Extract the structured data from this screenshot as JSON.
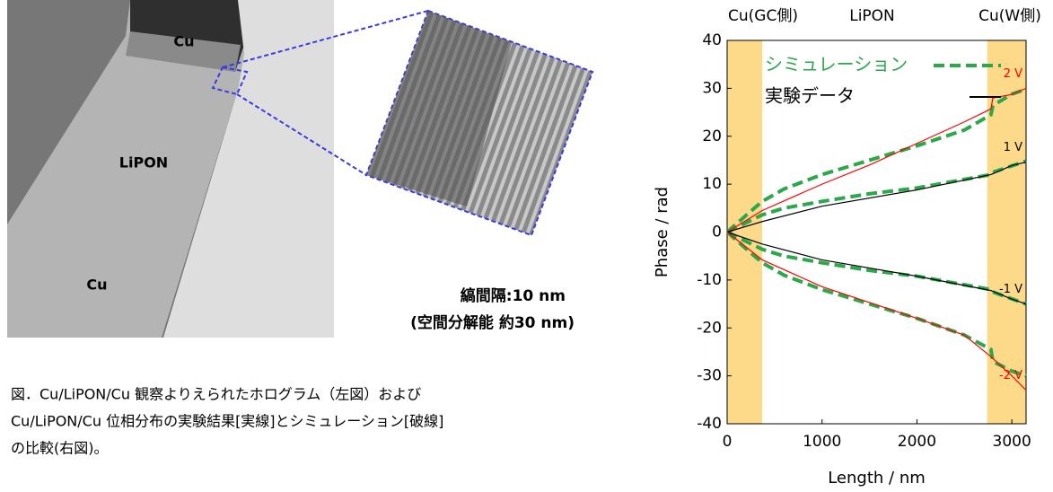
{
  "image": {
    "labels": [
      "Cu",
      "LiPON",
      "Cu"
    ],
    "fringe_spacing": "縞間隔:10 nm",
    "resolution": "(空間分解能 約30 nm)"
  },
  "caption": [
    "図．Cu/LiPON/Cu 観察よりえられたホログラム（左図）および",
    "Cu/LiPON/Cu 位相分布の実験結果[実線]とシミュレーション[破線]",
    "の比較(右図)。"
  ],
  "chart_data": {
    "type": "line",
    "xlabel": "Length / nm",
    "ylabel": "Phase / rad",
    "xlim": [
      0,
      3150
    ],
    "ylim": [
      -40,
      40
    ],
    "xticks": [
      0,
      1000,
      2000,
      3000
    ],
    "yticks": [
      -40,
      -30,
      -20,
      -10,
      0,
      10,
      20,
      30,
      40
    ],
    "regions": [
      {
        "label": "Cu(GC側)",
        "span": [
          0,
          370
        ]
      },
      {
        "label": "LiPON"
      },
      {
        "label": "Cu(W側)",
        "span": [
          2740,
          3150
        ]
      }
    ],
    "region_color": "#fdd98a",
    "legend": [
      {
        "name": "シミュレーション",
        "color": "#2aa84a",
        "dash": true
      },
      {
        "name": "実験データ",
        "color": "#000000",
        "dash": false
      }
    ],
    "series": [
      {
        "label": "2 V",
        "color": "#2aa84a",
        "dash": true,
        "x": [
          0,
          200,
          370,
          600,
          1000,
          1500,
          2000,
          2500,
          2780,
          2800,
          3000,
          3150
        ],
        "values": [
          0,
          3.5,
          6.4,
          9,
          12,
          15,
          18,
          21.3,
          24.5,
          26.4,
          28.8,
          29.8
        ]
      },
      {
        "label": "1 V",
        "color": "#2aa84a",
        "dash": true,
        "x": [
          0,
          370,
          600,
          1000,
          1500,
          2000,
          2780,
          2800,
          3150
        ],
        "values": [
          0,
          3.6,
          5,
          6.4,
          8,
          9.2,
          12,
          12.5,
          14.8
        ]
      },
      {
        "label": "-1 V",
        "color": "#2aa84a",
        "dash": true,
        "x": [
          0,
          370,
          600,
          1000,
          1500,
          2000,
          2780,
          2800,
          3150
        ],
        "values": [
          0,
          -3.6,
          -5,
          -6.4,
          -8,
          -9.2,
          -12,
          -12.5,
          -15
        ]
      },
      {
        "label": "-2 V",
        "color": "#2aa84a",
        "dash": true,
        "x": [
          0,
          200,
          370,
          600,
          1000,
          1500,
          2000,
          2500,
          2780,
          2800,
          3000,
          3150
        ],
        "values": [
          0,
          -3.5,
          -6.4,
          -9,
          -12,
          -15,
          -18,
          -21.5,
          -24.5,
          -27,
          -29,
          -30
        ]
      },
      {
        "label": "2 V",
        "color": "#ff0000",
        "dash": false,
        "x": [
          0,
          370,
          1000,
          1500,
          2000,
          2500,
          2780,
          2800,
          3000,
          3150
        ],
        "values": [
          0,
          4.5,
          10,
          14,
          18.5,
          23,
          25.7,
          28,
          28.7,
          30
        ]
      },
      {
        "label": "1 V",
        "color": "#000000",
        "dash": false,
        "x": [
          0,
          370,
          1000,
          2000,
          2780,
          3000,
          3150
        ],
        "values": [
          0,
          2.2,
          5.4,
          8.8,
          12,
          13.9,
          14.6
        ]
      },
      {
        "label": "-1 V",
        "color": "#000000",
        "dash": false,
        "x": [
          0,
          370,
          1000,
          2000,
          2780,
          3000,
          3150
        ],
        "values": [
          0,
          -2.5,
          -5.8,
          -9.2,
          -12.2,
          -14,
          -15
        ]
      },
      {
        "label": "-2 V",
        "color": "#ff0000",
        "dash": false,
        "x": [
          0,
          370,
          1000,
          2000,
          2500,
          2780,
          3000,
          3150
        ],
        "values": [
          0,
          -5.8,
          -11.4,
          -18,
          -21.5,
          -26,
          -30,
          -33
        ]
      }
    ]
  }
}
